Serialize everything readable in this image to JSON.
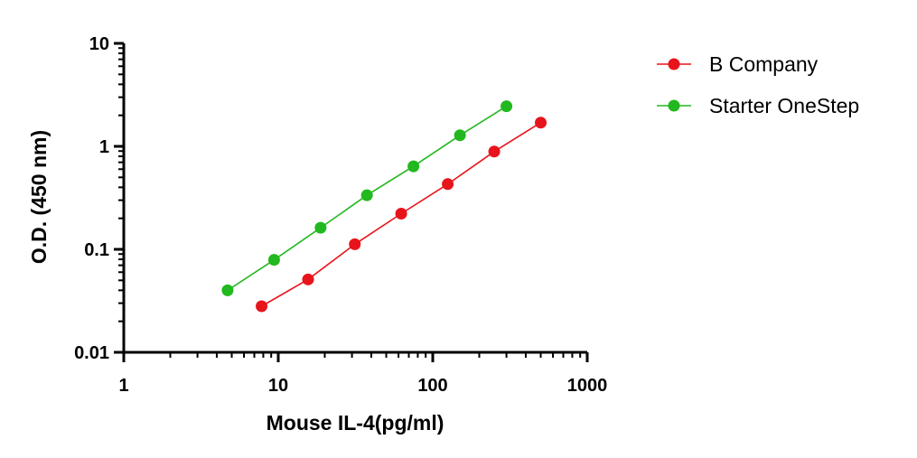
{
  "chart_data": {
    "type": "scatter",
    "title": "",
    "xlabel": "Mouse IL-4(pg/ml)",
    "ylabel": "O.D. (450 nm)",
    "xscale": "log",
    "yscale": "log",
    "xlim": [
      1,
      1000
    ],
    "ylim": [
      0.01,
      10
    ],
    "x_ticks": [
      1,
      10,
      100,
      1000
    ],
    "x_tick_labels": [
      "1",
      "10",
      "100",
      "1000"
    ],
    "y_ticks": [
      0.01,
      0.1,
      1,
      10
    ],
    "y_tick_labels": [
      "0.01",
      "0.1",
      "1",
      "10"
    ],
    "grid": false,
    "legend_position": "top-right",
    "series": [
      {
        "name": "B Company",
        "color": "#e8141b",
        "x": [
          7.8,
          15.6,
          31.3,
          62.5,
          125,
          250,
          500
        ],
        "y": [
          0.028,
          0.051,
          0.112,
          0.222,
          0.43,
          0.89,
          1.7
        ]
      },
      {
        "name": "Starter OneStep",
        "color": "#22b81f",
        "x": [
          4.7,
          9.4,
          18.8,
          37.5,
          75,
          150,
          300
        ],
        "y": [
          0.04,
          0.079,
          0.162,
          0.335,
          0.64,
          1.28,
          2.45
        ]
      }
    ]
  }
}
